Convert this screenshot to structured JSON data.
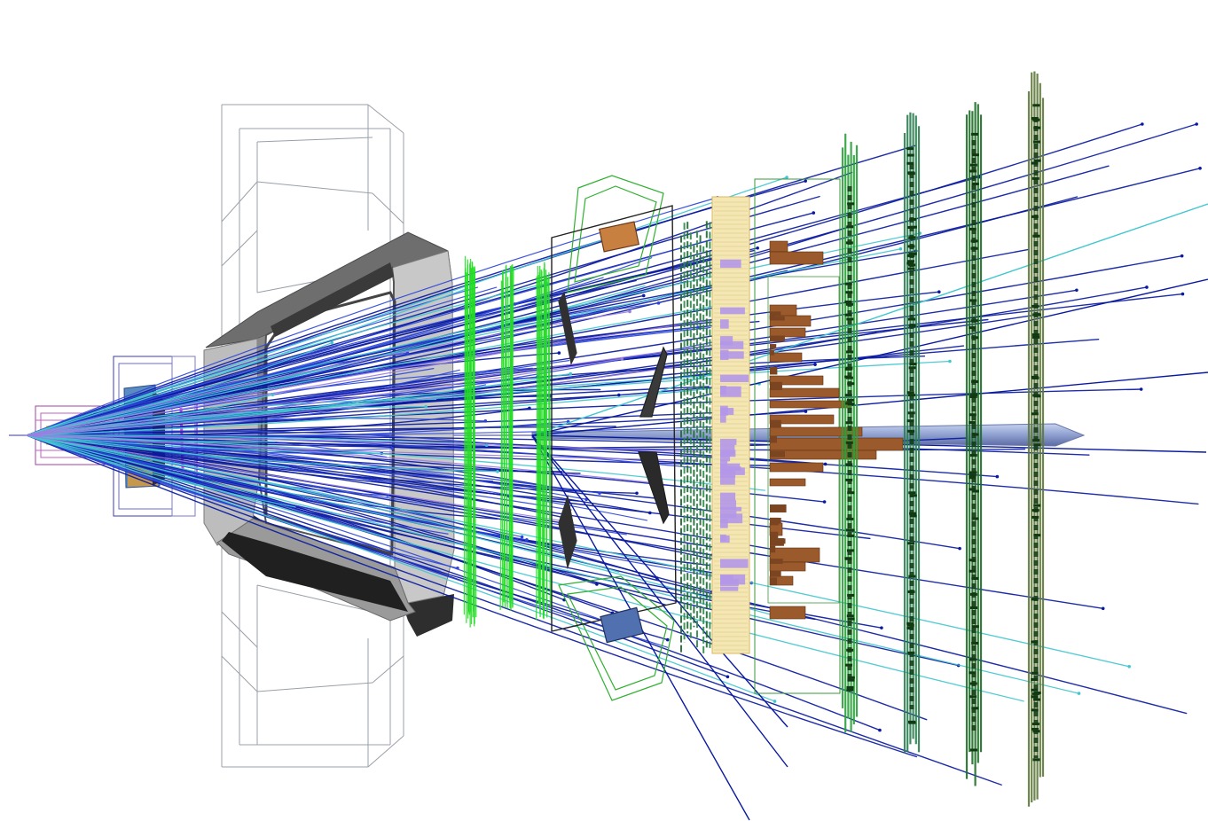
{
  "scene": {
    "background": "#ffffff",
    "colors": {
      "track_dark": "#0a1aa0",
      "track_blue": "#2e46d8",
      "track_cyan": "#43c7cf",
      "track_violet": "#9a7fe0",
      "magnet_top": "#707070",
      "magnet_face": "#c8c8c8",
      "magnet_dark": "#3c3c3c",
      "magnet_edge": "#9a9a9a",
      "tt_green": "#22dd22",
      "rich2_outline": "#2fae2f",
      "muon_1": "#2aa13a",
      "muon_2": "#2c7f52",
      "muon_3": "#1f6e28",
      "muon_4": "#5f7a3a",
      "ecal_brown": "#9b5a2b",
      "prs_violet": "#b497e8",
      "spd_yellow": "#f3e3a8",
      "beam_pipe": "#9fb1dc",
      "velo_orange": "#e0a040",
      "velo_blue": "#6ea0d0",
      "velo_frame": "#4a4ad0",
      "rich1_magenta": "#c040c0",
      "wire_grey": "#8a8a8a"
    },
    "detector_components": [
      "vertex-locator",
      "rich1",
      "trigger-tracker",
      "dipole-magnet",
      "tracking-stations",
      "rich2",
      "scintillator-pad",
      "preshower",
      "electromagnetic-calorimeter",
      "muon-stations"
    ],
    "track_counts": {
      "dark": 90,
      "blue": 45,
      "cyan": 28,
      "violet": 10
    }
  }
}
